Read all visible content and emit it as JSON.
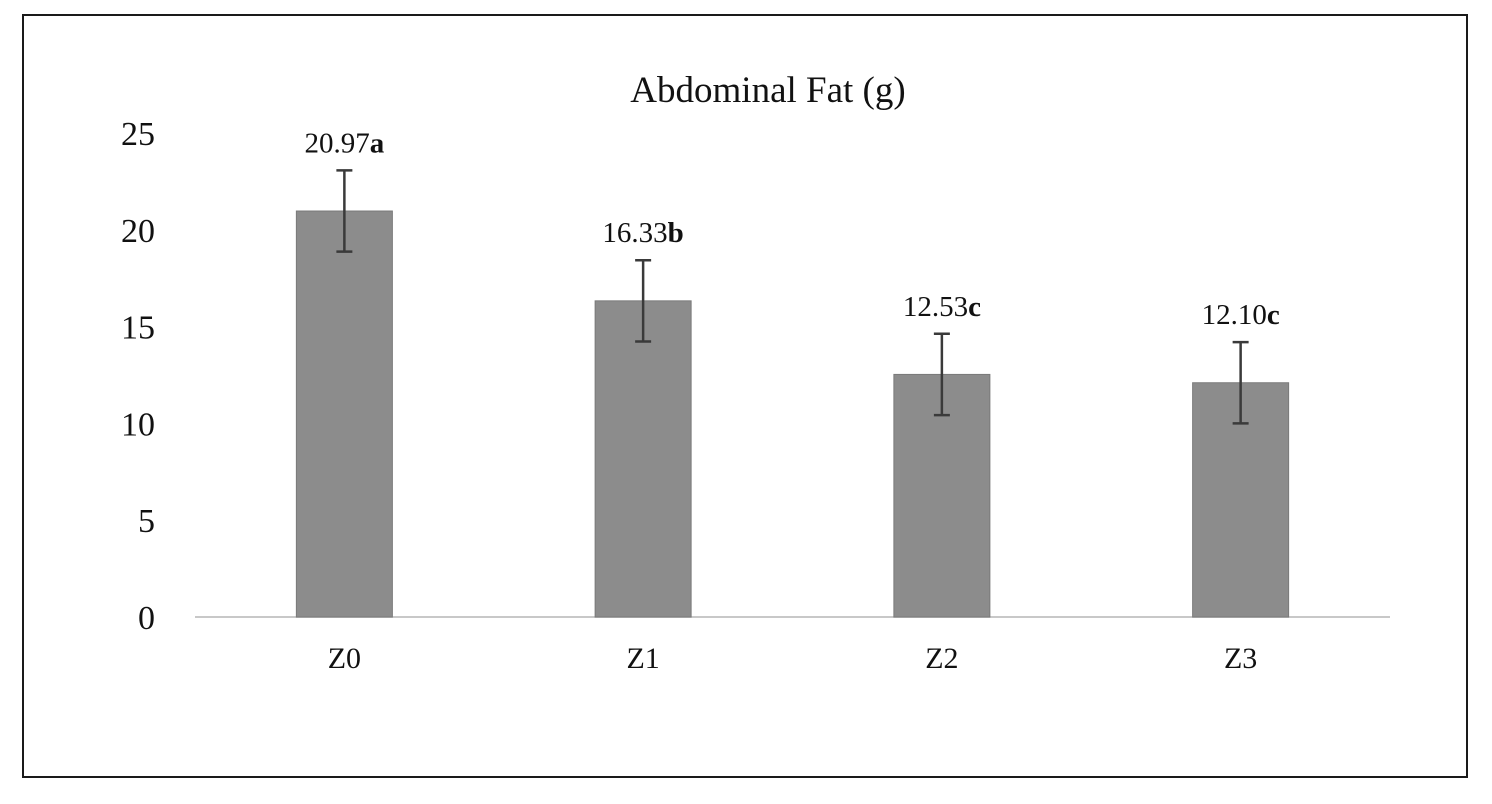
{
  "chart_data": {
    "type": "bar",
    "title": "Abdominal Fat (g)",
    "xlabel": "",
    "ylabel": "",
    "categories": [
      "Z0",
      "Z1",
      "Z2",
      "Z3"
    ],
    "values": [
      20.97,
      16.33,
      12.53,
      12.1
    ],
    "error": [
      2.1,
      2.1,
      2.1,
      2.1
    ],
    "data_labels": [
      "20.97",
      "16.33",
      "12.53",
      "12.10"
    ],
    "significance": [
      "a",
      "b",
      "c",
      "c"
    ],
    "ylim": [
      0,
      25
    ],
    "yticks": [
      "0",
      "5",
      "10",
      "15",
      "20",
      "25"
    ],
    "ytick_values": [
      0,
      5,
      10,
      15,
      20,
      25
    ],
    "grid": false,
    "legend": "none",
    "colors": {
      "bar": "#8c8c8c",
      "bar_edge": "#7a7a7a",
      "error_bar": "#3a3a3a",
      "axis": "#c8c8c8",
      "text": "#111111",
      "frame": "#1a1a1a"
    }
  }
}
